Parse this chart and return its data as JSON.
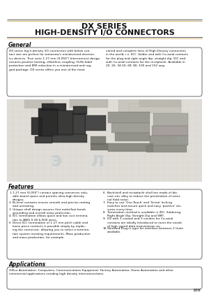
{
  "title_line1": "DX SERIES",
  "title_line2": "HIGH-DENSITY I/O CONNECTORS",
  "page_bg": "#ffffff",
  "section_general_title": "General",
  "section_features_title": "Features",
  "section_applications_title": "Applications",
  "page_number": "189",
  "gen_text_left": "DX series hig h-density I/O connectors with below con-\ntact size are perfect for tomorrow's miniaturized electron-\nics devices. True serie 1.27 mm (0.050\") Interconnect design\nensures positive locking, effortless coupling. Hi-Re-liabil\nprotection and EMI reduction in a miniaturized and rug-\nged package. DX series offers you one of the most",
  "gen_text_right": "varied and complete lines of High-Density connectors\nin the world, i.e. IDC. Solder and with Co-axial contacts\nfor the plug and right angle dip, straight dip, IDC and\nwith Co-axial contacts for the receptacle. Available in\n20, 26, 34,50, 68, 80, 100 and 152 way.",
  "features_left": [
    [
      "1.",
      "1.27 mm (0.050\") contact spacing conserves valu-\nable board space and permits ultra-high density\ndesigns."
    ],
    [
      "2.",
      "Bi-level contacts ensure smooth and precise mating\nand unmating."
    ],
    [
      "3.",
      "Unique shell design assures first make/last break\ngrounding and overall noise protection."
    ],
    [
      "4.",
      "IDC termination allows quick and low cost termina-\ntion to AWG 0.28 & B30 wires."
    ],
    [
      "5.",
      "Direct IDC termination of 1.27 mm pitch cable and\nloose piece contacts is possible simply by replac-\ning the connector, allowing you to select a termina-\ntion system meeting requirements. Mass production\nand mass production, for example."
    ]
  ],
  "features_right": [
    [
      "6.",
      "Backshell and receptacle shell are made of die-\ncast zinc alloy to reduce the penetration of exter-\nnal field noise."
    ],
    [
      "7.",
      "Easy to use 'One-Touch' and 'Screw' locking\nmatches and assure quick and easy 'positive' clo-\nsures every time."
    ],
    [
      "8.",
      "Termination method is available in IDC, Soldering,\nRight Angle Dip, Straight Dip and SMT."
    ],
    [
      "9.",
      "DX with 3 coaxial and 3 cavities for Co-axial\ncontacts are ideally introduced to meet the needs\nof high speed data transmission on."
    ],
    [
      "10.",
      "Shielded Plug-in type for interface between 2 Units\navailable."
    ]
  ],
  "app_text": "Office Automation, Computers, Communications Equipment, Factory Automation, Home Automation and other\ncommercial applications needing high density interconnections."
}
